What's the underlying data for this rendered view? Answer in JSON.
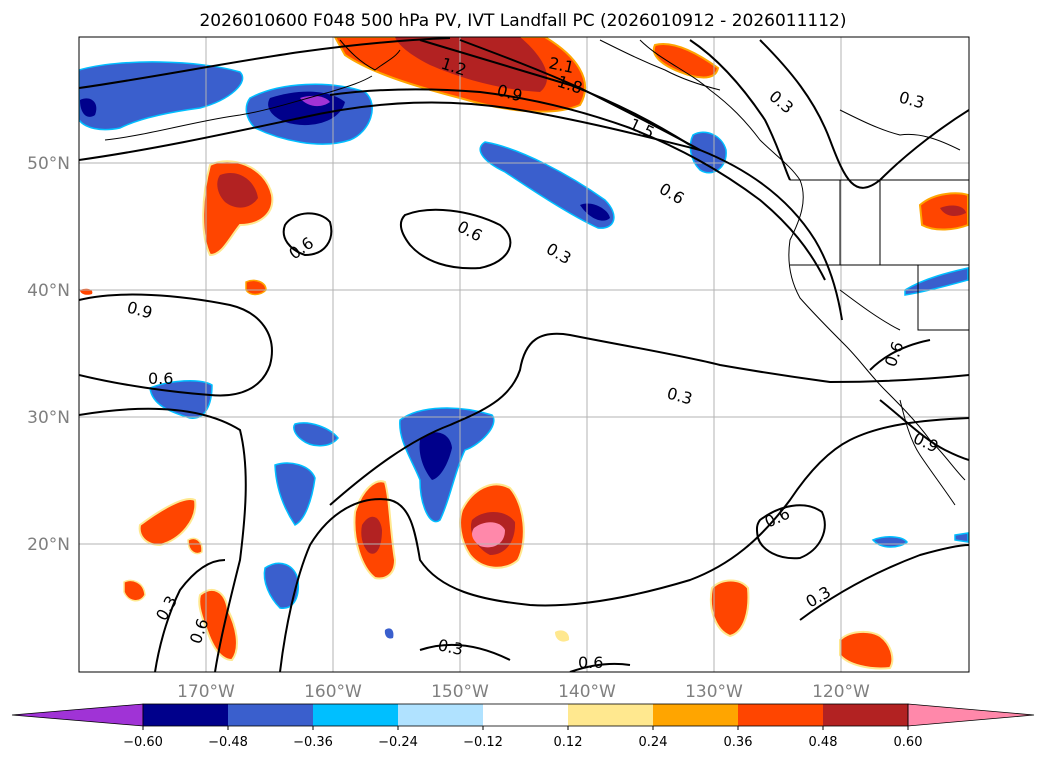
{
  "title": "2026010600 F048 500 hPa PV, IVT Landfall PC (2026010912 - 2026011112)",
  "map": {
    "lat_labels": [
      "50°N",
      "40°N",
      "30°N",
      "20°N"
    ],
    "lon_labels": [
      "170°W",
      "160°W",
      "150°W",
      "140°W",
      "130°W",
      "120°W"
    ]
  },
  "contour_labels": [
    "2.1",
    "1.8",
    "1.5",
    "1.2",
    "0.9",
    "0.3",
    "0.3",
    "0.6",
    "0.6",
    "0.6",
    "0.3",
    "0.9",
    "0.6",
    "0.3",
    "0.6",
    "0.3",
    "0.6",
    "0.9",
    "0.6",
    "0.3",
    "0.3",
    "0.6"
  ],
  "colorbar": {
    "ticks": [
      "−0.60",
      "−0.48",
      "−0.36",
      "−0.24",
      "−0.12",
      "0.12",
      "0.24",
      "0.36",
      "0.48",
      "0.60"
    ],
    "colors": [
      "#a033d6",
      "#00008b",
      "#3a5fcd",
      "#00bfff",
      "#b0e2ff",
      "#ffffff",
      "#ffe88f",
      "#ffa500",
      "#ff4500",
      "#b22222",
      "#ff88aa"
    ]
  }
}
